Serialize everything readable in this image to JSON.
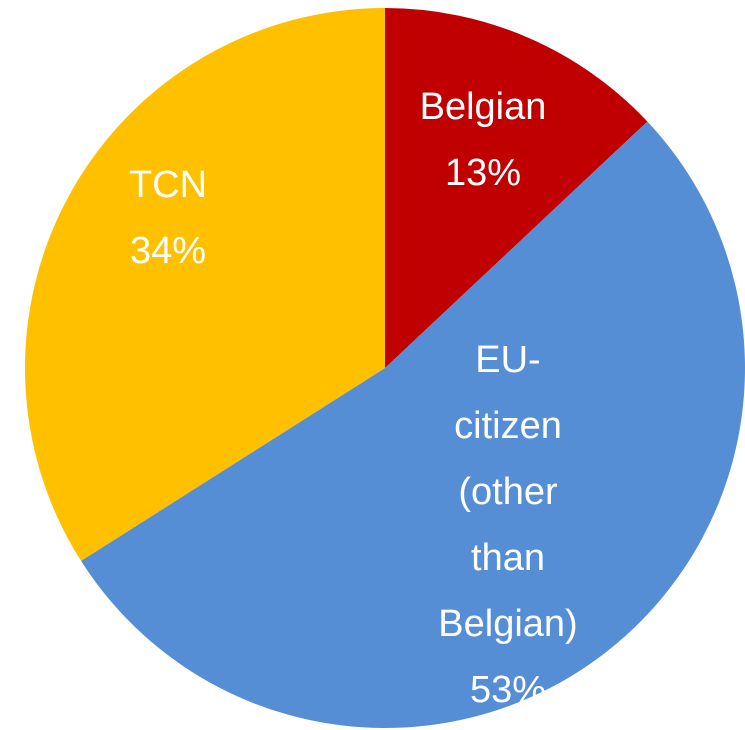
{
  "chart_data": {
    "type": "pie",
    "categories": [
      "Belgian",
      "EU-citizen (other than Belgian)",
      "TCN"
    ],
    "values": [
      13,
      53,
      34
    ],
    "value_labels": [
      "13%",
      "53%",
      "34%"
    ],
    "colors": [
      "#c00000",
      "#558ed5",
      "#ffc000"
    ]
  }
}
